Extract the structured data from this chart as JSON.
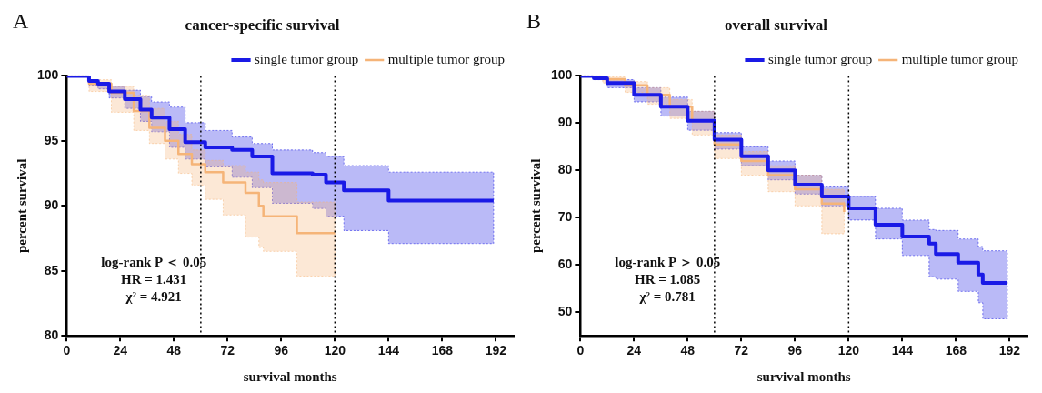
{
  "chart_data": [
    {
      "type": "step",
      "title": "cancer-specific survival",
      "xlabel": "survival months",
      "ylabel": "percent survival",
      "annotations": [
        "A",
        "log-rank P ＜ 0.05",
        "HR = 1.431",
        "χ² = 4.921"
      ],
      "xlim": [
        0,
        200
      ],
      "xticks": [
        0,
        24,
        48,
        72,
        96,
        120,
        144,
        168,
        192
      ],
      "ylim": [
        80,
        100
      ],
      "yticks": [
        80,
        85,
        90,
        95,
        100
      ],
      "legend": "top right",
      "line_style": "solid",
      "ref_lines": [
        {
          "axis": "x",
          "value": 60,
          "color": "#000000",
          "line_style": "dotted"
        },
        {
          "axis": "x",
          "value": 120,
          "color": "#000000",
          "line_style": "dotted"
        }
      ],
      "series": [
        {
          "name": "single tumor group",
          "color": "#1a1ae6",
          "x": [
            0,
            10,
            14,
            19,
            26,
            33,
            38,
            46,
            53,
            62,
            74,
            83,
            92,
            110,
            116,
            124,
            144,
            191
          ],
          "values": [
            100,
            99.6,
            99.4,
            98.8,
            98.2,
            97.4,
            96.8,
            95.9,
            94.9,
            94.5,
            94.3,
            93.8,
            92.5,
            92.4,
            91.8,
            91.2,
            90.4,
            90.4
          ],
          "upper": [
            100,
            99.7,
            99.5,
            99.2,
            98.9,
            98.4,
            98,
            97.6,
            96.4,
            95.8,
            95.3,
            94.8,
            94.3,
            94.1,
            93.8,
            93.1,
            92.6,
            92.6
          ],
          "lower": [
            100,
            99.3,
            99,
            98.3,
            97.5,
            96.5,
            95.7,
            94.5,
            93.6,
            93,
            92.2,
            91.4,
            90.2,
            89.8,
            89.2,
            88.1,
            87.1,
            87.1
          ]
        },
        {
          "name": "multiple tumor group",
          "color": "#f5b478",
          "x": [
            0,
            10,
            20,
            30,
            37,
            44,
            50,
            56,
            62,
            70,
            80,
            86,
            88,
            103,
            120
          ],
          "values": [
            100,
            99.4,
            98.7,
            97.3,
            96,
            95,
            94,
            93.2,
            92.6,
            91.8,
            91,
            90,
            89.2,
            87.9,
            87.9
          ],
          "upper": [
            100,
            99.7,
            99.2,
            98.5,
            97.5,
            96.5,
            95.5,
            94.3,
            93.5,
            93.1,
            92.6,
            92,
            91.8,
            90.3,
            90.3
          ],
          "lower": [
            100,
            98.8,
            97.2,
            95.8,
            94.8,
            93.6,
            92.5,
            91.6,
            90.5,
            89.3,
            87.6,
            86.8,
            86.5,
            84.6,
            84.6
          ]
        }
      ]
    },
    {
      "type": "step",
      "title": "overall survival",
      "xlabel": "survival months",
      "ylabel": "percent survival",
      "annotations": [
        "B",
        "log-rank P ＞ 0.05",
        "HR = 1.085",
        "χ² = 0.781"
      ],
      "xlim": [
        0,
        200
      ],
      "xticks": [
        0,
        24,
        48,
        72,
        96,
        120,
        144,
        168,
        192
      ],
      "ylim": [
        45,
        100
      ],
      "yticks": [
        50,
        60,
        70,
        80,
        90,
        100
      ],
      "legend": "top right",
      "line_style": "solid",
      "ref_lines": [
        {
          "axis": "x",
          "value": 60,
          "color": "#000000",
          "line_style": "dotted"
        },
        {
          "axis": "x",
          "value": 120,
          "color": "#000000",
          "line_style": "dotted"
        }
      ],
      "series": [
        {
          "name": "single tumor group",
          "color": "#1a1ae6",
          "x": [
            0,
            6,
            12,
            24,
            36,
            48,
            60,
            72,
            84,
            96,
            108,
            120,
            132,
            144,
            156,
            159,
            169,
            178,
            180,
            191
          ],
          "values": [
            100,
            99.5,
            98.5,
            96,
            93.5,
            90.5,
            86.5,
            83,
            80,
            77,
            74.5,
            72,
            68.5,
            66,
            64.5,
            62.3,
            60.5,
            58,
            56.2,
            56.2
          ],
          "upper": [
            100,
            99.8,
            99.2,
            97.5,
            95.5,
            92.5,
            88,
            85,
            82,
            79,
            76.5,
            74.5,
            72,
            69.5,
            67.5,
            67.3,
            65.5,
            63.9,
            63,
            63
          ],
          "lower": [
            100,
            99.2,
            97.5,
            94.5,
            91.5,
            88.5,
            84.5,
            81,
            78,
            75,
            72.5,
            69.5,
            65.5,
            62,
            57.5,
            57,
            54.4,
            52,
            48.6,
            48.6
          ]
        },
        {
          "name": "multiple tumor group",
          "color": "#f5b478",
          "x": [
            0,
            10,
            20,
            30,
            40,
            50,
            60,
            72,
            84,
            96,
            108,
            118
          ],
          "values": [
            100,
            99.3,
            98,
            96,
            93.5,
            90.5,
            85.5,
            82,
            79,
            76,
            73,
            71.2
          ],
          "upper": [
            100,
            99.8,
            98.8,
            97.5,
            95,
            92.5,
            87.5,
            84,
            81,
            79,
            76,
            74
          ],
          "lower": [
            100,
            98.5,
            96.5,
            94,
            91,
            87.5,
            82.5,
            79,
            75.5,
            72.5,
            66.6,
            66.6
          ]
        }
      ]
    }
  ]
}
